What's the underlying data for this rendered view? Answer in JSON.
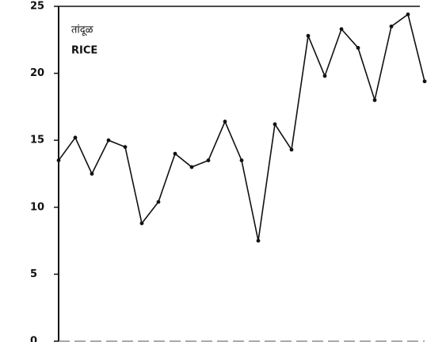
{
  "chart_data": {
    "type": "line",
    "title": "तांदूळ",
    "subtitle": "RICE",
    "categories": [
      null,
      null,
      null,
      null,
      null,
      null,
      null,
      null,
      null,
      null,
      null,
      null,
      null,
      null,
      null,
      null,
      null,
      null,
      null,
      null,
      null,
      null,
      null
    ],
    "values": [
      13.5,
      15.2,
      12.5,
      15.0,
      14.5,
      8.8,
      10.4,
      14.0,
      13.0,
      13.5,
      16.4,
      13.5,
      7.5,
      16.2,
      14.3,
      22.8,
      19.8,
      23.3,
      21.9,
      18.0,
      23.5,
      24.4,
      19.4
    ],
    "color": "#111111",
    "ylim": [
      0,
      25
    ],
    "yticks": [
      0,
      5,
      10,
      15,
      20,
      25
    ],
    "grid": false
  }
}
